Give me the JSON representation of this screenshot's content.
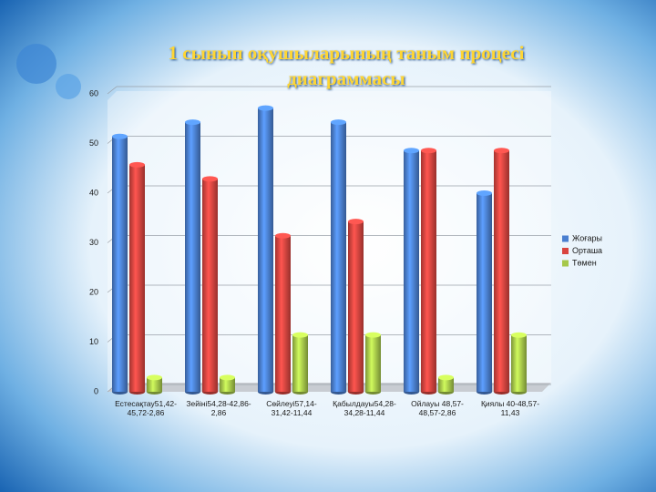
{
  "chart_data": {
    "type": "bar",
    "title": "1 сынып   оқушыларының таным процесі диаграммасы",
    "categories": [
      "Естесақтау51,42-45,72-2,86",
      "Зейіні54,28-42,86-2,86",
      "Сөйлеуі57,14-31,42-11,44",
      "Қабылдауы54,28-34,28-11,44",
      "Ойлауы 48,57-48,57-2,86",
      "Қиялы 40-48,57-11,43"
    ],
    "series": [
      {
        "name": "Жоғары",
        "color": "#4a7fd0",
        "values": [
          51.42,
          54.28,
          57.14,
          54.28,
          48.57,
          40
        ]
      },
      {
        "name": "Орташа",
        "color": "#d9443f",
        "values": [
          45.72,
          42.86,
          31.42,
          34.28,
          48.57,
          48.57
        ]
      },
      {
        "name": "Төмен",
        "color": "#a6c84a",
        "values": [
          2.86,
          2.86,
          11.44,
          11.44,
          2.86,
          11.43
        ]
      }
    ],
    "ylim": [
      0,
      60
    ],
    "yticks": [
      0,
      10,
      20,
      30,
      40,
      50,
      60
    ],
    "grid": true,
    "legend": "right"
  }
}
